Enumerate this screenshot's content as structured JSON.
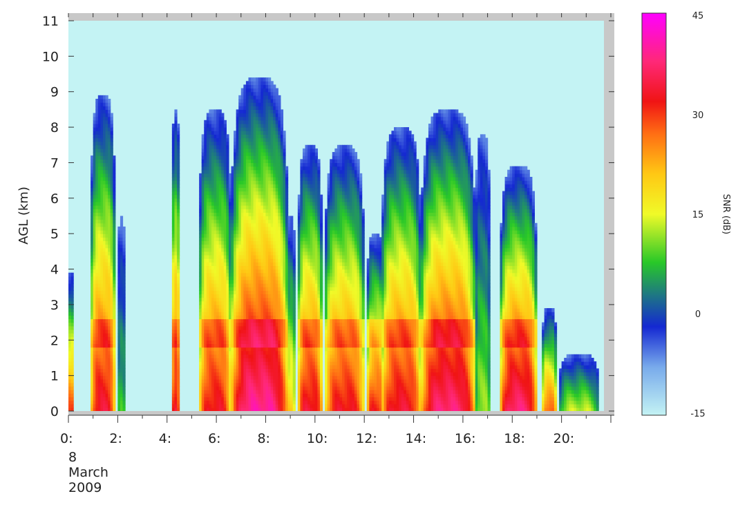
{
  "chart_data": {
    "type": "heatmap",
    "title": "",
    "xlabel": "",
    "ylabel": "AGL (km)",
    "xlim": [
      0,
      22
    ],
    "ylim": [
      0,
      11
    ],
    "x_ticks": [
      0,
      2,
      4,
      6,
      8,
      10,
      12,
      14,
      16,
      18,
      20
    ],
    "x_tick_labels": [
      "0:",
      "2:",
      "4:",
      "6:",
      "8:",
      "10:",
      "12:",
      "14:",
      "16:",
      "18:",
      "20:"
    ],
    "y_ticks": [
      0,
      1,
      2,
      3,
      4,
      5,
      6,
      7,
      8,
      9,
      10,
      11
    ],
    "y_tick_labels": [
      "0",
      "1",
      "2",
      "3",
      "4",
      "5",
      "6",
      "7",
      "8",
      "9",
      "10",
      "11"
    ],
    "date_label": [
      "8",
      "March",
      "2009"
    ],
    "data_extent": {
      "x": [
        0,
        21.6
      ],
      "y": [
        0,
        10.8
      ]
    },
    "colorbar": {
      "title": "SNR (dB)",
      "range": [
        -15,
        45
      ],
      "ticks": [
        -15,
        0,
        15,
        30,
        45
      ],
      "tick_labels": [
        "-15",
        "0",
        "15",
        "30",
        "45"
      ]
    },
    "columns": [
      {
        "x0": 0.0,
        "x1": 0.2,
        "top": 4.0,
        "peak": 30
      },
      {
        "x0": 0.9,
        "x1": 1.9,
        "top": 8.9,
        "peak": 34
      },
      {
        "x0": 2.0,
        "x1": 2.3,
        "top": 5.5,
        "peak": 8
      },
      {
        "x0": 4.2,
        "x1": 4.5,
        "top": 8.5,
        "peak": 34
      },
      {
        "x0": 5.3,
        "x1": 6.6,
        "top": 8.5,
        "peak": 33
      },
      {
        "x0": 6.6,
        "x1": 8.9,
        "top": 9.4,
        "peak": 40
      },
      {
        "x0": 8.8,
        "x1": 9.2,
        "top": 5.5,
        "peak": 20
      },
      {
        "x0": 9.3,
        "x1": 10.3,
        "top": 7.5,
        "peak": 34
      },
      {
        "x0": 10.4,
        "x1": 12.0,
        "top": 7.5,
        "peak": 33
      },
      {
        "x0": 12.1,
        "x1": 12.8,
        "top": 5.0,
        "peak": 32
      },
      {
        "x0": 12.7,
        "x1": 14.3,
        "top": 8.0,
        "peak": 34
      },
      {
        "x0": 14.3,
        "x1": 16.5,
        "top": 8.5,
        "peak": 38
      },
      {
        "x0": 16.5,
        "x1": 17.1,
        "top": 7.8,
        "peak": 12
      },
      {
        "x0": 17.5,
        "x1": 19.0,
        "top": 6.9,
        "peak": 38
      },
      {
        "x0": 19.2,
        "x1": 19.8,
        "top": 2.9,
        "peak": 28
      },
      {
        "x0": 19.9,
        "x1": 21.5,
        "top": 1.6,
        "peak": 14
      }
    ]
  }
}
